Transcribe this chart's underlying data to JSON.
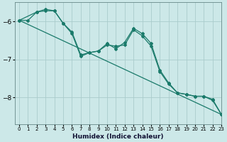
{
  "bg_color": "#cce8e8",
  "grid_color": "#aacccc",
  "line_color": "#1a7a6a",
  "xlabel": "Humidex (Indice chaleur)",
  "xlim": [
    -0.5,
    23
  ],
  "ylim": [
    -8.7,
    -5.5
  ],
  "yticks": [
    -8,
    -7,
    -6
  ],
  "xticks": [
    0,
    1,
    2,
    3,
    4,
    5,
    6,
    7,
    8,
    9,
    10,
    11,
    12,
    13,
    14,
    15,
    16,
    17,
    18,
    19,
    20,
    21,
    22,
    23
  ],
  "trend_x": [
    0,
    23
  ],
  "trend_y": [
    -5.97,
    -8.45
  ],
  "curve1_x": [
    0,
    1,
    2,
    3,
    4,
    5,
    6,
    7,
    8,
    9,
    10,
    11,
    12,
    13,
    14,
    15,
    16,
    17,
    18,
    19,
    20,
    21,
    22,
    23
  ],
  "curve1_y": [
    -5.97,
    -5.97,
    -5.75,
    -5.72,
    -5.72,
    -6.05,
    -6.32,
    -6.92,
    -6.82,
    -6.78,
    -6.58,
    -6.72,
    -6.55,
    -6.18,
    -6.32,
    -6.58,
    -7.28,
    -7.62,
    -7.88,
    -7.92,
    -7.97,
    -7.97,
    -8.08,
    -8.45
  ],
  "curve2_x": [
    0,
    2,
    3,
    4,
    5,
    6,
    7,
    8,
    9,
    10,
    11,
    12,
    13,
    14,
    15,
    16,
    17,
    18,
    19,
    20,
    21,
    22,
    23
  ],
  "curve2_y": [
    -5.97,
    -5.75,
    -5.68,
    -5.72,
    -6.05,
    -6.28,
    -6.88,
    -6.82,
    -6.78,
    -6.62,
    -6.65,
    -6.62,
    -6.22,
    -6.38,
    -6.65,
    -7.32,
    -7.65,
    -7.88,
    -7.92,
    -7.97,
    -7.97,
    -8.05,
    -8.45
  ]
}
